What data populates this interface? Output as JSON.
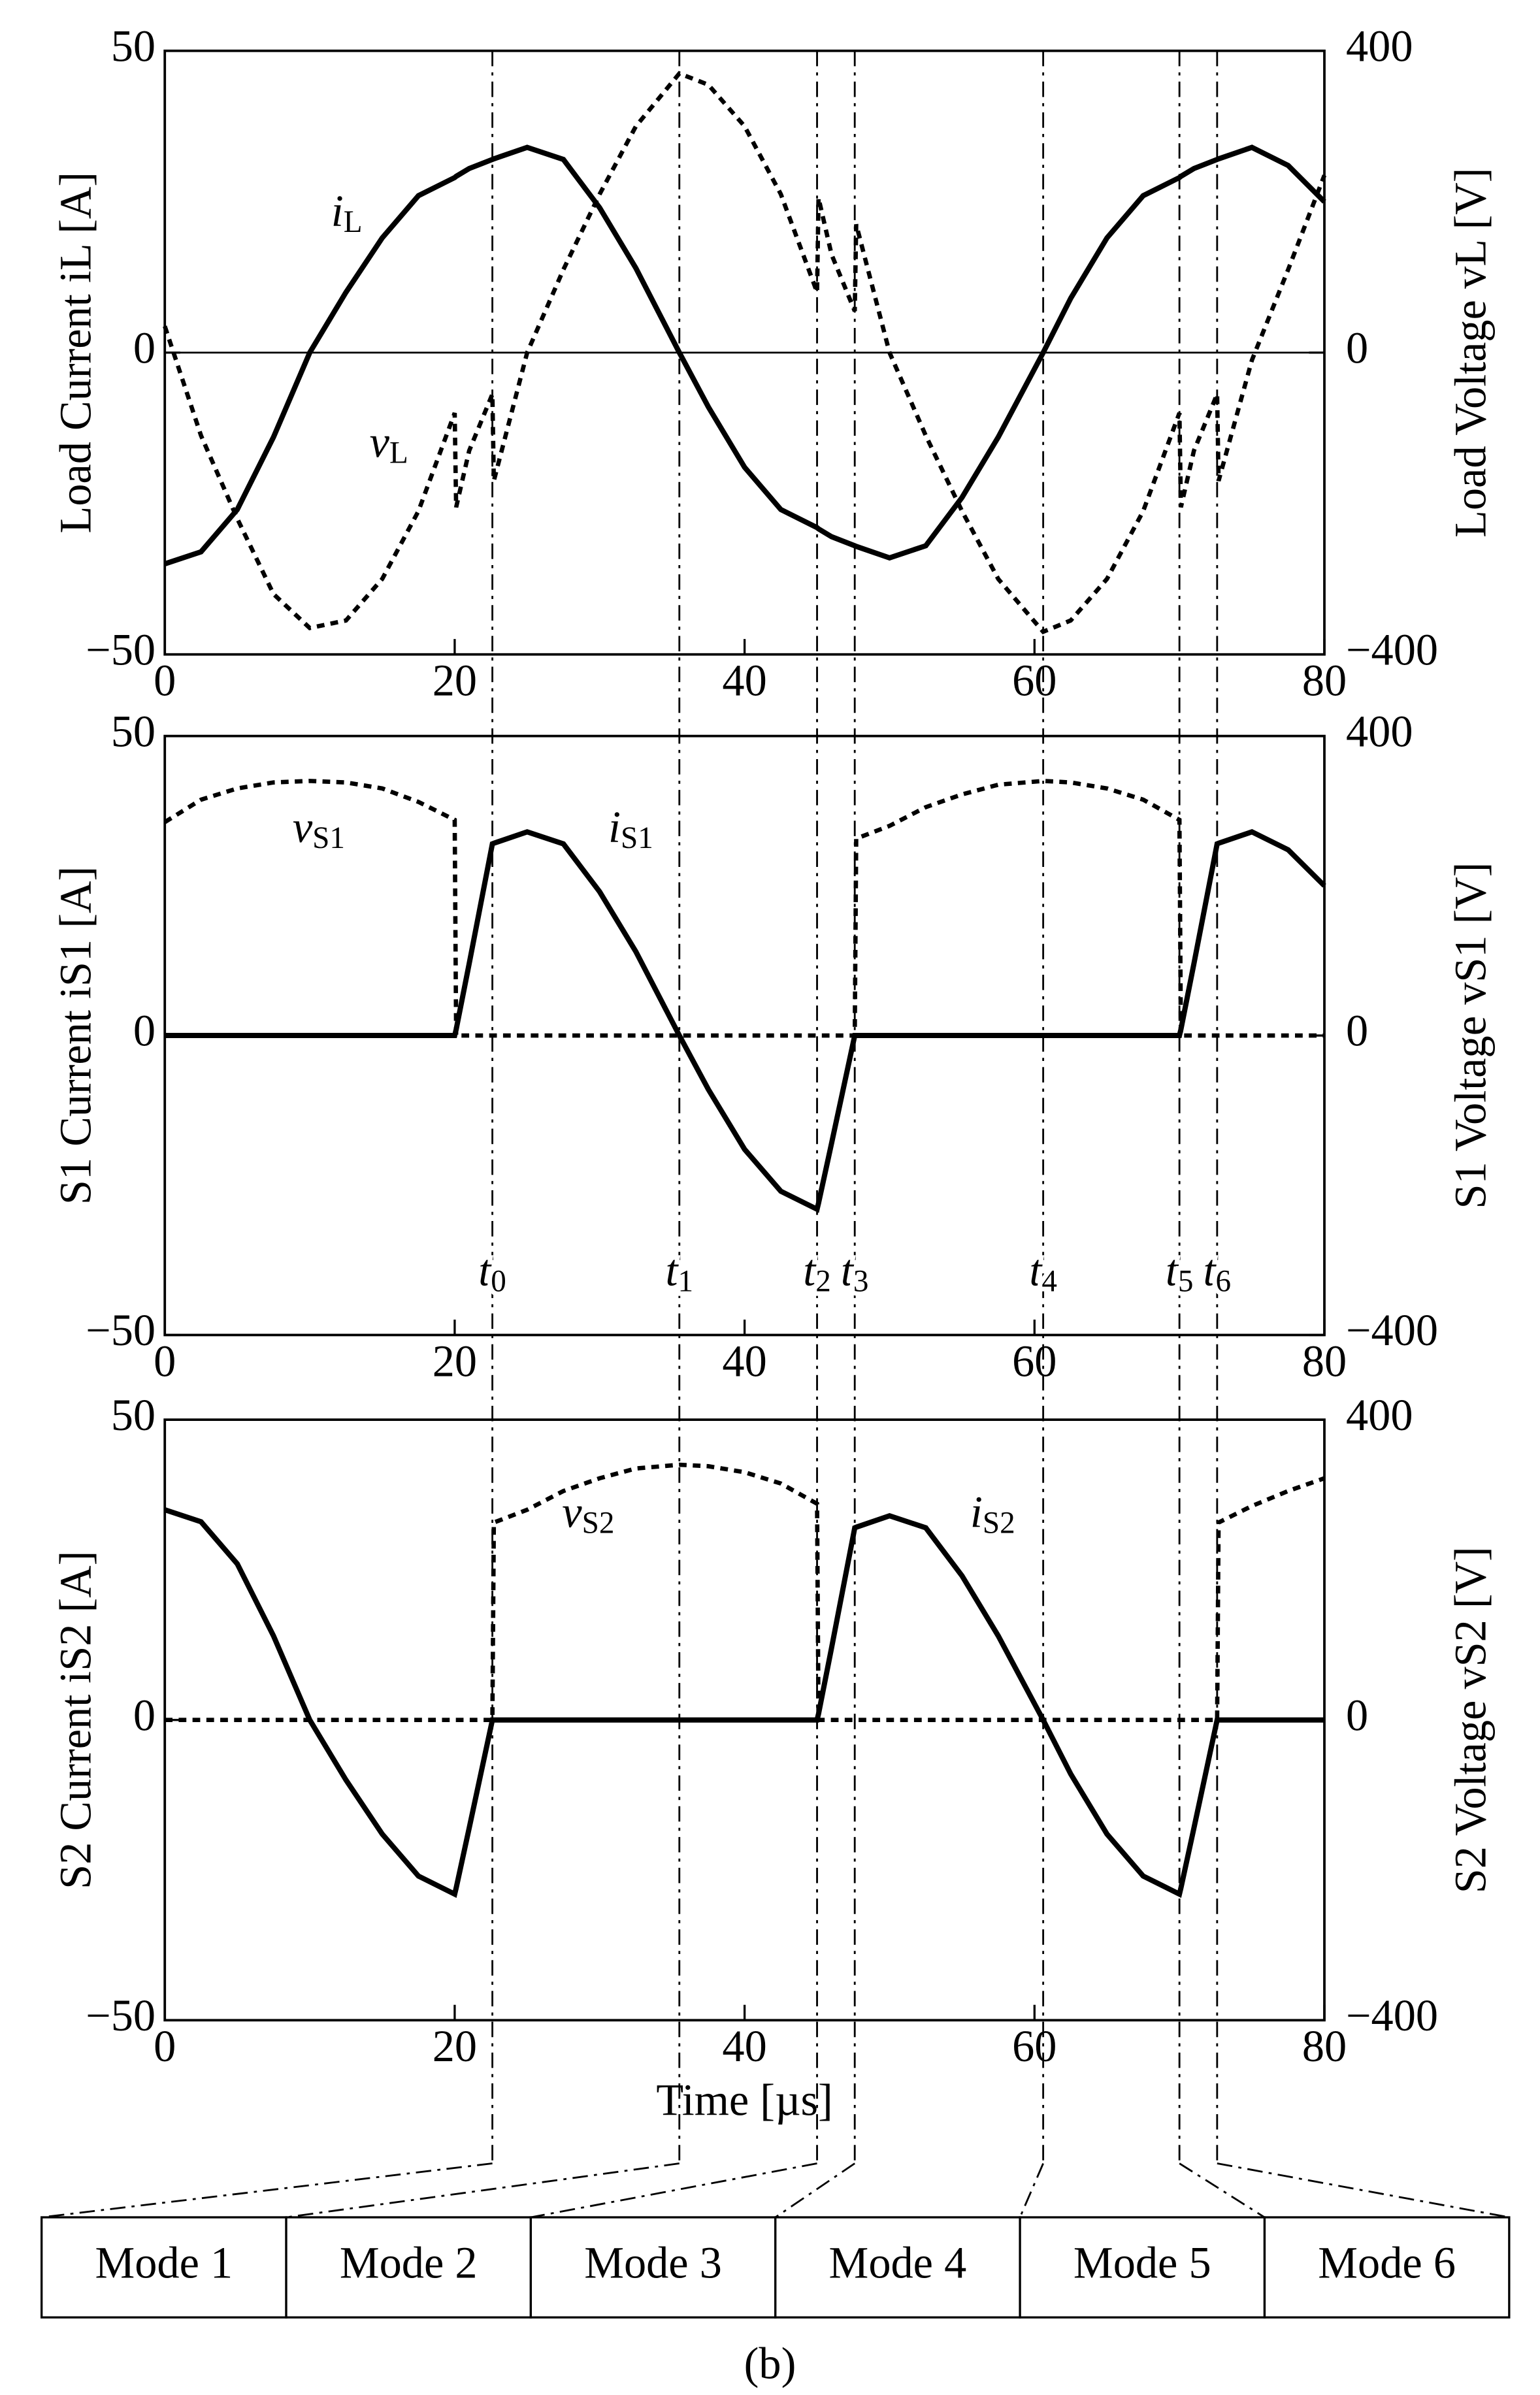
{
  "chart_data": [
    {
      "type": "line",
      "x": [
        0,
        2.5,
        5,
        7.5,
        10,
        12.5,
        15,
        17.5,
        20,
        20.1,
        21,
        22.6,
        22.7,
        25,
        27.5,
        30,
        32.5,
        35.5,
        37.5,
        40,
        42.5,
        45,
        45.1,
        46,
        47.6,
        47.7,
        50,
        52.5,
        55,
        57.5,
        60.6,
        62.5,
        65,
        67.5,
        70,
        70.1,
        71,
        72.6,
        72.7,
        75,
        77.5,
        80
      ],
      "xlim": [
        0,
        80
      ],
      "xticks": [
        0,
        20,
        40,
        60,
        80
      ],
      "ylim": [
        -50,
        50
      ],
      "yticks": [
        {
          "value": -50,
          "label": "−50"
        },
        0,
        50
      ],
      "y2lim": [
        -400,
        400
      ],
      "y2ticks": [
        {
          "value": -400,
          "label": "−400"
        },
        0,
        400
      ],
      "ylabel": "Load Current iL [A]",
      "y2label": "Load Voltage vL [V]",
      "zero_line": true,
      "series": [
        {
          "name": "iL",
          "color": "#000000",
          "line_style": "solid",
          "values": [
            -35,
            -33,
            -26,
            -14,
            0,
            10,
            19,
            26,
            29,
            29.2,
            30.5,
            32,
            32.1,
            34,
            32,
            24,
            14,
            0,
            -9,
            -19,
            -26,
            -29,
            -29.2,
            -30.5,
            -32,
            -32.1,
            -34,
            -32,
            -24,
            -14,
            0,
            9,
            19,
            26,
            29,
            29.2,
            30.5,
            32,
            32.1,
            34,
            31,
            25
          ]
        },
        {
          "name": "vL",
          "color": "#000000",
          "line_style": "dashed",
          "axis": "y2",
          "values": [
            35,
            -110,
            -220,
            -320,
            -365,
            -355,
            -300,
            -210,
            -80,
            -205,
            -130,
            -55,
            -170,
            0,
            110,
            210,
            300,
            370,
            355,
            300,
            210,
            80,
            205,
            130,
            55,
            170,
            0,
            -110,
            -210,
            -300,
            -370,
            -355,
            -300,
            -210,
            -80,
            -205,
            -130,
            -55,
            -170,
            -10,
            110,
            235
          ]
        }
      ]
    },
    {
      "type": "line",
      "x": [
        0,
        2.5,
        5,
        7.5,
        10,
        12.5,
        15,
        17.5,
        20,
        20.1,
        21,
        22.6,
        22.7,
        25,
        27.5,
        30,
        32.5,
        35.5,
        37.5,
        40,
        42.5,
        45,
        45.1,
        46,
        47.6,
        47.7,
        50,
        52.5,
        55,
        57.5,
        60.6,
        62.5,
        65,
        67.5,
        70,
        70.1,
        71,
        72.6,
        72.7,
        75,
        77.5,
        80
      ],
      "xlim": [
        0,
        80
      ],
      "xticks": [
        0,
        20,
        40,
        60,
        80
      ],
      "ylim": [
        -50,
        50
      ],
      "yticks": [
        {
          "value": -50,
          "label": "−50"
        },
        0,
        50
      ],
      "y2lim": [
        -400,
        400
      ],
      "y2ticks": [
        {
          "value": -400,
          "label": "−400"
        },
        0,
        400
      ],
      "ylabel": "S1 Current iS1 [A]",
      "y2label": "S1 Voltage vS1 [V]",
      "vlines": [
        {
          "value": 22.6,
          "label": "t0"
        },
        {
          "value": 35.5,
          "label": "t1"
        },
        {
          "value": 45,
          "label": "t2"
        },
        {
          "value": 47.6,
          "label": "t3"
        },
        {
          "value": 60.6,
          "label": "t4"
        },
        {
          "value": 70,
          "label": "t5"
        },
        {
          "value": 72.6,
          "label": "t6"
        }
      ],
      "series": [
        {
          "name": "vS1",
          "color": "#000000",
          "line_style": "dashed",
          "axis": "y2",
          "values": [
            285,
            315,
            330,
            338,
            340,
            338,
            330,
            312,
            288,
            0,
            0,
            0,
            0,
            0,
            0,
            0,
            0,
            0,
            0,
            0,
            0,
            0,
            0,
            0,
            0,
            263,
            280,
            305,
            322,
            335,
            340,
            338,
            330,
            315,
            288,
            0,
            0,
            0,
            0,
            0,
            0,
            0
          ]
        },
        {
          "name": "iS1",
          "color": "#000000",
          "line_style": "solid",
          "values": [
            0,
            0,
            0,
            0,
            0,
            0,
            0,
            0,
            0,
            1,
            12,
            32,
            32.1,
            34,
            32,
            24,
            14,
            0,
            -9,
            -19,
            -26,
            -29,
            -28,
            -18,
            0,
            0,
            0,
            0,
            0,
            0,
            0,
            0,
            0,
            0,
            0,
            1,
            12,
            32,
            32.1,
            34,
            31,
            25
          ]
        }
      ]
    },
    {
      "type": "line",
      "x": [
        0,
        2.5,
        5,
        7.5,
        10,
        12.5,
        15,
        17.5,
        20,
        20.1,
        21,
        22.6,
        22.7,
        25,
        27.5,
        30,
        32.5,
        35.5,
        37.5,
        40,
        42.5,
        45,
        45.1,
        46,
        47.6,
        47.7,
        50,
        52.5,
        55,
        57.5,
        60.6,
        62.5,
        65,
        67.5,
        70,
        70.1,
        71,
        72.6,
        72.7,
        75,
        77.5,
        80
      ],
      "xlim": [
        0,
        80
      ],
      "xticks": [
        0,
        20,
        40,
        60,
        80
      ],
      "ylim": [
        -50,
        50
      ],
      "yticks": [
        {
          "value": -50,
          "label": "−50"
        },
        0,
        50
      ],
      "y2lim": [
        -400,
        400
      ],
      "y2ticks": [
        {
          "value": -400,
          "label": "−400"
        },
        0,
        400
      ],
      "xlabel": "Time [µs]",
      "ylabel": "S2 Current iS2 [A]",
      "y2label": "S2 Voltage vS2 [V]",
      "series": [
        {
          "name": "vS2",
          "color": "#000000",
          "line_style": "dashed",
          "axis": "y2",
          "values": [
            0,
            0,
            0,
            0,
            0,
            0,
            0,
            0,
            0,
            0,
            0,
            0,
            263,
            280,
            305,
            322,
            335,
            340,
            338,
            330,
            315,
            288,
            0,
            0,
            0,
            0,
            0,
            0,
            0,
            0,
            0,
            0,
            0,
            0,
            0,
            0,
            0,
            0,
            263,
            285,
            305,
            322
          ]
        },
        {
          "name": "iS2",
          "color": "#000000",
          "line_style": "solid",
          "values": [
            35,
            33,
            26,
            14,
            0,
            -10,
            -19,
            -26,
            -29,
            -28,
            -18,
            0,
            0,
            0,
            0,
            0,
            0,
            0,
            0,
            0,
            0,
            0,
            1,
            12,
            32,
            32.1,
            34,
            32,
            24,
            14,
            0,
            -9,
            -19,
            -26,
            -29,
            -28,
            -18,
            0,
            0,
            0,
            0,
            0
          ]
        }
      ]
    }
  ],
  "modes": [
    "Mode 1",
    "Mode 2",
    "Mode 3",
    "Mode 4",
    "Mode 5",
    "Mode 6"
  ],
  "caption": "(b)"
}
